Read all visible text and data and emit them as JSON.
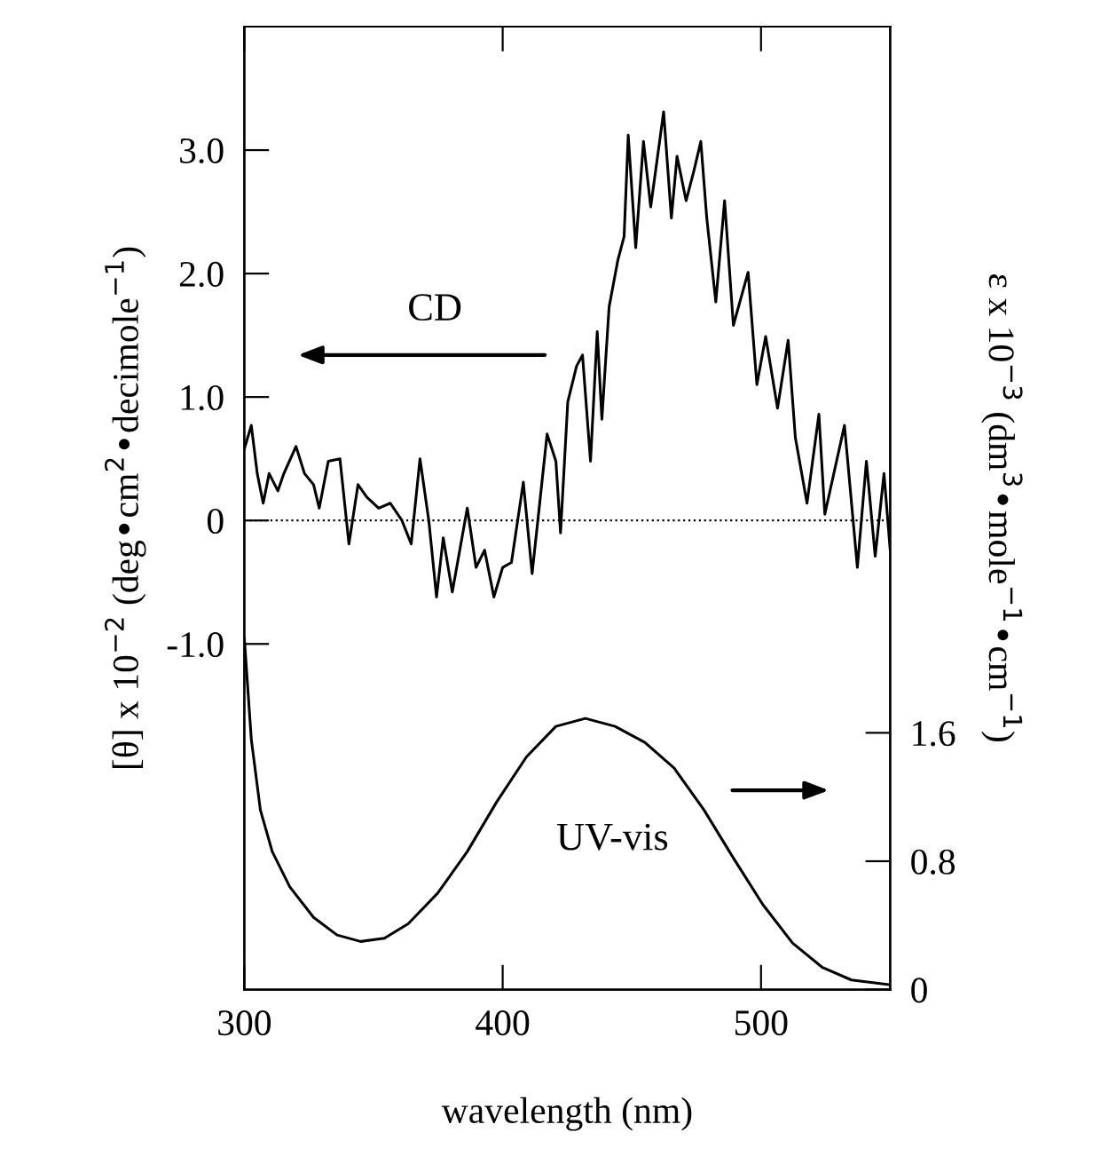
{
  "chart_data": {
    "type": "line",
    "xlabel": "wavelength (nm)",
    "ylabel": "[θ] x 10$^{−2}$ (deg•cm$^{2}$•decimole$^{−1}$)",
    "y2label": "ε x 10$^{−3}$ (dm$^{3}$•mole$^{−1}$•cm$^{−1}$)",
    "xlim": [
      300,
      550
    ],
    "xticks": [
      300,
      400,
      500
    ],
    "ylim": [
      -3.8,
      4.0
    ],
    "yticks": [
      {
        "value": -1,
        "label": "-1.0"
      },
      0,
      {
        "value": 1,
        "label": "1.0"
      },
      {
        "value": 2,
        "label": "2.0"
      },
      {
        "value": 3,
        "label": "3.0"
      }
    ],
    "y2lim": [
      0,
      6.0
    ],
    "y2ticks": [
      0,
      0.8,
      1.6
    ],
    "grid": false,
    "legend": false,
    "marker": "none",
    "line_style": "solid",
    "ref_lines": [
      {
        "axis": "y",
        "value": 0,
        "line_style": "dotted",
        "color": "#000000"
      }
    ],
    "annotations": [
      "CD",
      "UV-vis"
    ],
    "series": [
      {
        "color": "#000000",
        "x": [
          300,
          302.7,
          305,
          307.3,
          309.6,
          313,
          315.3,
          320,
          323.3,
          326.8,
          329,
          332.5,
          337,
          340.5,
          344,
          347.4,
          352,
          356.5,
          361,
          364.6,
          368,
          371.4,
          374.4,
          377,
          380.5,
          386.3,
          389.7,
          393,
          396.6,
          400,
          403.4,
          408,
          411.4,
          417.2,
          420.6,
          422.4,
          425.2,
          428.6,
          430.9,
          434,
          436.6,
          438.4,
          441.2,
          444.6,
          447,
          448.6,
          451.5,
          454.5,
          457.3,
          462.3,
          465.3,
          467.5,
          471,
          474,
          476.7,
          479,
          482.5,
          485.9,
          489.3,
          495,
          498.4,
          501.8,
          506.4,
          510.5,
          513.3,
          517.8,
          522.4,
          524.7,
          532.3,
          537.3,
          540.8,
          544.2,
          547.6,
          550
        ],
        "values": [
          0.58,
          0.77,
          0.38,
          0.14,
          0.38,
          0.24,
          0.38,
          0.6,
          0.38,
          0.29,
          0.1,
          0.48,
          0.5,
          -0.19,
          0.29,
          0.19,
          0.1,
          0.14,
          0,
          -0.19,
          0.5,
          0,
          -0.62,
          -0.14,
          -0.58,
          0.1,
          -0.38,
          -0.24,
          -0.62,
          -0.38,
          -0.34,
          0.31,
          -0.43,
          0.7,
          0.48,
          -0.1,
          0.96,
          1.25,
          1.34,
          0.48,
          1.53,
          0.82,
          1.73,
          2.11,
          2.3,
          3.12,
          2.21,
          3.07,
          2.54,
          3.31,
          2.45,
          2.95,
          2.59,
          2.83,
          3.07,
          2.45,
          1.77,
          2.59,
          1.58,
          2.01,
          1.1,
          1.49,
          0.91,
          1.46,
          0.67,
          0.14,
          0.86,
          0.05,
          0.77,
          -0.38,
          0.48,
          -0.29,
          0.38,
          -0.24
        ]
      },
      {
        "color": "#000000",
        "axis": "y2",
        "x": [
          300,
          302.7,
          306.2,
          310.8,
          317.6,
          326.8,
          335.9,
          345,
          354.2,
          363.4,
          374.8,
          386.3,
          397.7,
          409.2,
          420.6,
          432,
          443.5,
          455,
          466.4,
          477.9,
          489.3,
          500.7,
          512.2,
          523.6,
          535,
          550
        ],
        "values": [
          2.19,
          1.56,
          1.12,
          0.86,
          0.64,
          0.45,
          0.34,
          0.3,
          0.32,
          0.41,
          0.6,
          0.86,
          1.17,
          1.45,
          1.64,
          1.69,
          1.64,
          1.54,
          1.38,
          1.12,
          0.82,
          0.53,
          0.29,
          0.14,
          0.06,
          0.03
        ]
      }
    ]
  }
}
